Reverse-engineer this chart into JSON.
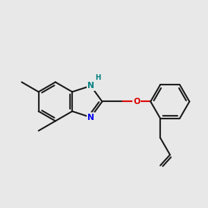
{
  "background_color": "#e8e8e8",
  "bond_color": "#1a1a1a",
  "nitrogen_color": "#0000ee",
  "oxygen_color": "#dd0000",
  "nh_color": "#008080",
  "line_width": 1.6,
  "dbo": 0.048,
  "figsize": [
    3.0,
    3.0
  ],
  "dpi": 100,
  "xlim": [
    0.0,
    4.2
  ],
  "ylim": [
    0.3,
    3.3
  ]
}
